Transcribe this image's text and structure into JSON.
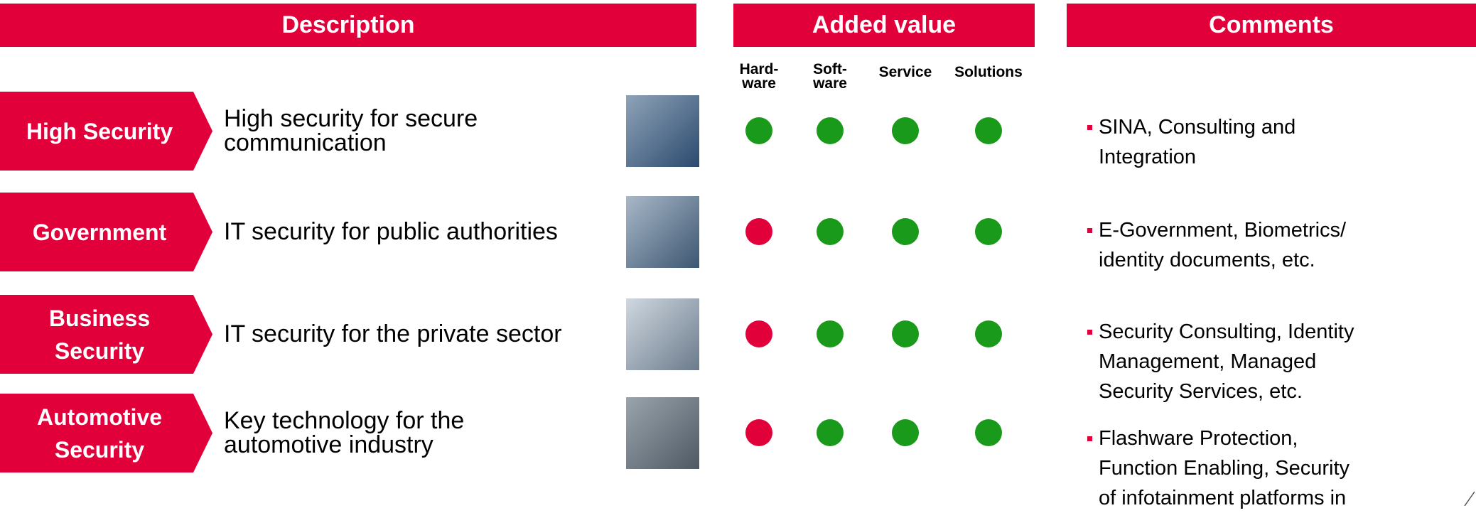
{
  "headers": {
    "description": "Description",
    "added_value": "Added value",
    "comments": "Comments"
  },
  "columns": [
    [
      "Hard-",
      "ware"
    ],
    [
      "Soft-",
      "ware"
    ],
    [
      "Service"
    ],
    [
      "Solutions"
    ]
  ],
  "colors": {
    "header": "#e2003b",
    "yes": "#1a9a1a",
    "no": "#e2003b"
  },
  "rows": [
    {
      "label": [
        "High Security"
      ],
      "description": [
        "High security for secure",
        "communication"
      ],
      "dots": [
        "yes",
        "yes",
        "yes",
        "yes"
      ],
      "comment": [
        "SINA, Consulting and",
        "Integration"
      ]
    },
    {
      "label": [
        "Government"
      ],
      "description": [
        "IT security for public authorities"
      ],
      "dots": [
        "no",
        "yes",
        "yes",
        "yes"
      ],
      "comment": [
        "E-Government, Biometrics/",
        "identity documents, etc."
      ]
    },
    {
      "label": [
        "Business",
        "Security"
      ],
      "description": [
        "IT security for the private sector"
      ],
      "dots": [
        "no",
        "yes",
        "yes",
        "yes"
      ],
      "comment": [
        "Security Consulting, Identity",
        "Management, Managed",
        "Security Services, etc."
      ]
    },
    {
      "label": [
        "Automotive",
        "Security"
      ],
      "description": [
        "Key technology for the",
        "automotive industry"
      ],
      "dots": [
        "no",
        "yes",
        "yes",
        "yes"
      ],
      "comment": [
        "Flashware Protection,",
        "Function Enabling, Security",
        "of infotainment platforms in"
      ]
    }
  ]
}
